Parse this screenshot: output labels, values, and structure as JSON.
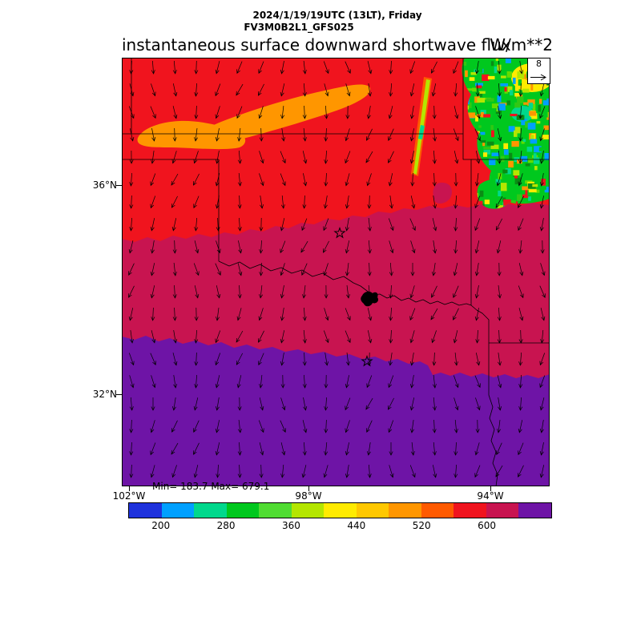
{
  "header": {
    "line1": "2024/1/19/19UTC (13LT), Friday",
    "line2": "FV3M0B2L1_GFS025"
  },
  "chart_data": {
    "type": "heatmap",
    "title": "instantaneous surface downward shortwave flux",
    "units_label": "W/m**2",
    "stats_label": "Min= 183.7 Max= 679.1",
    "min_value": 183.7,
    "max_value": 679.1,
    "wind_reference_label": "8",
    "x_axis": {
      "tick_labels": [
        "102°W",
        "98°W",
        "94°W"
      ]
    },
    "y_axis": {
      "tick_labels": [
        "36°N",
        "32°N"
      ]
    },
    "colorbar": {
      "tick_labels": [
        "200",
        "280",
        "360",
        "440",
        "520",
        "600"
      ],
      "tick_values": [
        200,
        280,
        360,
        440,
        520,
        600
      ],
      "segment_colors": [
        "#1e32dc",
        "#00a0ff",
        "#00d88c",
        "#00c81e",
        "#50dc32",
        "#b4e600",
        "#ffeb00",
        "#ffc800",
        "#ff9600",
        "#ff5a00",
        "#f0141e",
        "#c81450",
        "#6e14a6"
      ]
    },
    "field_colors": {
      "red": "#f0141e",
      "crimson": "#c81450",
      "purple": "#6e14a6",
      "orange": "#ff9600",
      "dark_orange": "#ff5a00",
      "yellow": "#ffeb00",
      "yellow_green": "#b4e600",
      "cyan_green": "#00d88c",
      "cloud_green": "#00c81e",
      "cloud_palette": [
        "#00c81e",
        "#32c814",
        "#64dc00",
        "#b4e600",
        "#ffeb00",
        "#00d88c",
        "#00a0ff",
        "#ff9600",
        "#f0141e",
        "#0a8c14"
      ]
    },
    "wind_field": {
      "arrow_color": "#000000",
      "direction": "northerly",
      "grid_cols": 20,
      "grid_rows": 19
    }
  }
}
